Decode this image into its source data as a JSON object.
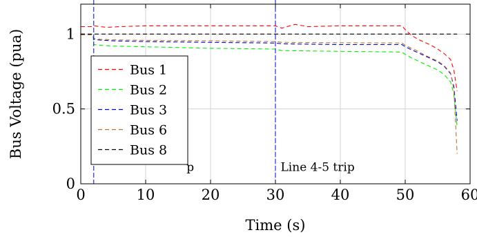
{
  "chart_data": {
    "type": "line",
    "xlabel": "Time (s)",
    "ylabel": "Bus Voltage (pua)",
    "xlim": [
      0,
      60
    ],
    "ylim": [
      0,
      1.2
    ],
    "xticks": [
      "0",
      "10",
      "20",
      "30",
      "40",
      "50",
      "60"
    ],
    "yticks": [
      "0",
      "0.5",
      "1"
    ],
    "grid": true,
    "legend_position": "left",
    "line_style": "dashed",
    "series": [
      {
        "name": "Bus 1",
        "color": "#ff0000",
        "x": [
          0,
          1.9,
          2,
          4,
          6,
          10,
          20,
          30,
          31,
          33,
          35,
          40,
          49.5,
          50,
          51,
          52,
          53,
          54,
          55,
          56,
          57,
          57.5,
          58
        ],
        "y": [
          1.05,
          1.05,
          1.055,
          1.045,
          1.05,
          1.055,
          1.055,
          1.055,
          1.04,
          1.065,
          1.05,
          1.055,
          1.055,
          1.03,
          0.99,
          0.965,
          0.945,
          0.925,
          0.9,
          0.87,
          0.83,
          0.76,
          0.62
        ]
      },
      {
        "name": "Bus 2",
        "color": "#00ee00",
        "x": [
          0,
          1.9,
          2,
          3,
          5,
          10,
          20,
          30,
          31,
          40,
          49.5,
          50,
          51,
          52,
          53,
          54,
          55,
          56,
          57,
          57.5,
          58
        ],
        "y": [
          0.995,
          0.995,
          0.93,
          0.925,
          0.92,
          0.915,
          0.905,
          0.9,
          0.89,
          0.885,
          0.88,
          0.865,
          0.84,
          0.82,
          0.8,
          0.78,
          0.76,
          0.73,
          0.68,
          0.6,
          0.38
        ]
      },
      {
        "name": "Bus 3",
        "color": "#0000cc",
        "x": [
          0,
          1.9,
          2,
          3,
          5,
          10,
          20,
          30,
          31,
          40,
          49.5,
          50,
          51,
          52,
          53,
          54,
          55,
          56,
          57,
          57.5,
          58
        ],
        "y": [
          0.995,
          0.995,
          0.965,
          0.96,
          0.955,
          0.95,
          0.945,
          0.94,
          0.935,
          0.93,
          0.93,
          0.915,
          0.895,
          0.875,
          0.855,
          0.835,
          0.815,
          0.785,
          0.735,
          0.65,
          0.42
        ]
      },
      {
        "name": "Bus 6",
        "color": "#b87333",
        "x": [
          0,
          1.9,
          2,
          3,
          5,
          10,
          20,
          30,
          31,
          40,
          49.5,
          50,
          51,
          52,
          53,
          54,
          55,
          56,
          57,
          57.5,
          58
        ],
        "y": [
          0.995,
          0.995,
          0.97,
          0.965,
          0.962,
          0.958,
          0.955,
          0.95,
          0.945,
          0.942,
          0.94,
          0.925,
          0.905,
          0.885,
          0.86,
          0.84,
          0.82,
          0.79,
          0.74,
          0.63,
          0.2
        ]
      },
      {
        "name": "Bus 8",
        "color": "#000000",
        "x": [
          0,
          58
        ],
        "y": [
          1.0,
          1.0
        ]
      }
    ],
    "vertical_lines": [
      {
        "x": 2,
        "color": "#0000cc"
      },
      {
        "x": 30,
        "color": "#0000cc"
      }
    ],
    "annotations": [
      {
        "text": "Line 4-5 trip",
        "x": 30.8,
        "y": 0.085
      },
      {
        "text": "p",
        "x": 16.3,
        "y": 0.085
      }
    ]
  }
}
